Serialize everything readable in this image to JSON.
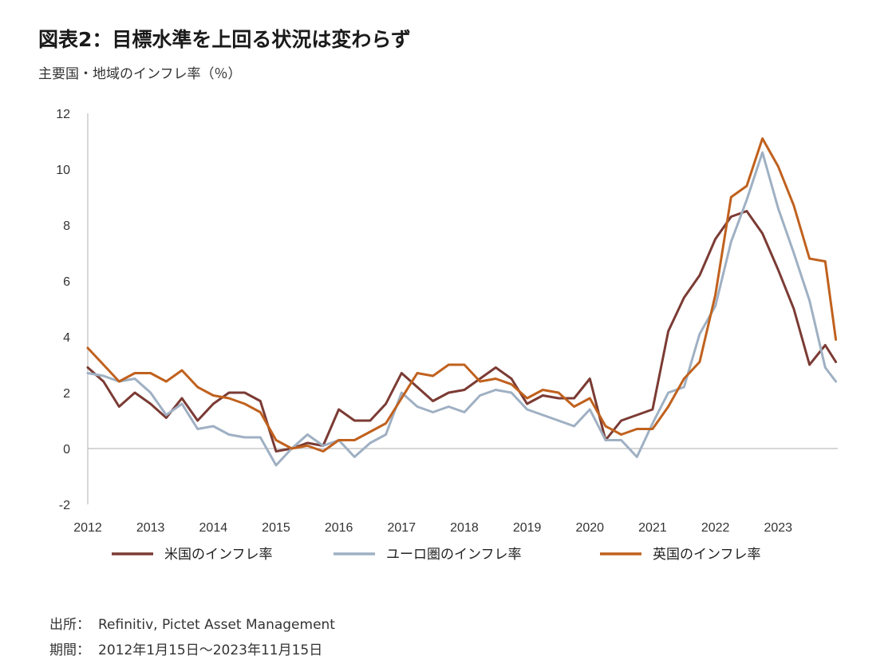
{
  "header": {
    "title": "図表2：目標水準を上回る状況は変わらず",
    "subtitle": "主要国・地域のインフレ率（％）"
  },
  "footer": {
    "source_key": "出所：",
    "source_value": "Refinitiv, Pictet Asset Management",
    "period_key": "期間：",
    "period_value": "2012年1月15日～2023年11月15日"
  },
  "chart_data": {
    "type": "line",
    "xlabel": "",
    "ylabel": "",
    "xlim": [
      2012.0,
      2023.95
    ],
    "ylim": [
      -2,
      12
    ],
    "yticks": [
      12,
      10,
      8,
      6,
      4,
      2,
      0,
      -2
    ],
    "xticks": [
      2012,
      2013,
      2014,
      2015,
      2016,
      2017,
      2018,
      2019,
      2020,
      2021,
      2022,
      2023
    ],
    "grid": false,
    "legend": "bottom",
    "series": [
      {
        "name": "米国のインフレ率",
        "color": "#7b3b34",
        "points": [
          [
            2012.0,
            2.9
          ],
          [
            2012.25,
            2.4
          ],
          [
            2012.5,
            1.5
          ],
          [
            2012.75,
            2.0
          ],
          [
            2013.0,
            1.6
          ],
          [
            2013.25,
            1.1
          ],
          [
            2013.5,
            1.8
          ],
          [
            2013.75,
            1.0
          ],
          [
            2014.0,
            1.6
          ],
          [
            2014.25,
            2.0
          ],
          [
            2014.5,
            2.0
          ],
          [
            2014.75,
            1.7
          ],
          [
            2015.0,
            -0.1
          ],
          [
            2015.25,
            0.0
          ],
          [
            2015.5,
            0.2
          ],
          [
            2015.75,
            0.1
          ],
          [
            2016.0,
            1.4
          ],
          [
            2016.25,
            1.0
          ],
          [
            2016.5,
            1.0
          ],
          [
            2016.75,
            1.6
          ],
          [
            2017.0,
            2.7
          ],
          [
            2017.25,
            2.2
          ],
          [
            2017.5,
            1.7
          ],
          [
            2017.75,
            2.0
          ],
          [
            2018.0,
            2.1
          ],
          [
            2018.25,
            2.5
          ],
          [
            2018.5,
            2.9
          ],
          [
            2018.75,
            2.5
          ],
          [
            2019.0,
            1.6
          ],
          [
            2019.25,
            1.9
          ],
          [
            2019.5,
            1.8
          ],
          [
            2019.75,
            1.8
          ],
          [
            2020.0,
            2.5
          ],
          [
            2020.25,
            0.3
          ],
          [
            2020.5,
            1.0
          ],
          [
            2020.75,
            1.2
          ],
          [
            2021.0,
            1.4
          ],
          [
            2021.25,
            4.2
          ],
          [
            2021.5,
            5.4
          ],
          [
            2021.75,
            6.2
          ],
          [
            2022.0,
            7.5
          ],
          [
            2022.25,
            8.3
          ],
          [
            2022.5,
            8.5
          ],
          [
            2022.75,
            7.7
          ],
          [
            2023.0,
            6.4
          ],
          [
            2023.25,
            5.0
          ],
          [
            2023.5,
            3.0
          ],
          [
            2023.75,
            3.7
          ],
          [
            2023.92,
            3.1
          ]
        ]
      },
      {
        "name": "ユーロ圏のインフレ率",
        "color": "#9fb0c3",
        "points": [
          [
            2012.0,
            2.7
          ],
          [
            2012.25,
            2.6
          ],
          [
            2012.5,
            2.4
          ],
          [
            2012.75,
            2.5
          ],
          [
            2013.0,
            2.0
          ],
          [
            2013.25,
            1.2
          ],
          [
            2013.5,
            1.6
          ],
          [
            2013.75,
            0.7
          ],
          [
            2014.0,
            0.8
          ],
          [
            2014.25,
            0.5
          ],
          [
            2014.5,
            0.4
          ],
          [
            2014.75,
            0.4
          ],
          [
            2015.0,
            -0.6
          ],
          [
            2015.25,
            0.0
          ],
          [
            2015.5,
            0.5
          ],
          [
            2015.75,
            0.1
          ],
          [
            2016.0,
            0.3
          ],
          [
            2016.25,
            -0.3
          ],
          [
            2016.5,
            0.2
          ],
          [
            2016.75,
            0.5
          ],
          [
            2017.0,
            2.0
          ],
          [
            2017.25,
            1.5
          ],
          [
            2017.5,
            1.3
          ],
          [
            2017.75,
            1.5
          ],
          [
            2018.0,
            1.3
          ],
          [
            2018.25,
            1.9
          ],
          [
            2018.5,
            2.1
          ],
          [
            2018.75,
            2.0
          ],
          [
            2019.0,
            1.4
          ],
          [
            2019.25,
            1.2
          ],
          [
            2019.5,
            1.0
          ],
          [
            2019.75,
            0.8
          ],
          [
            2020.0,
            1.4
          ],
          [
            2020.25,
            0.3
          ],
          [
            2020.5,
            0.3
          ],
          [
            2020.75,
            -0.3
          ],
          [
            2021.0,
            0.9
          ],
          [
            2021.25,
            2.0
          ],
          [
            2021.5,
            2.2
          ],
          [
            2021.75,
            4.1
          ],
          [
            2022.0,
            5.1
          ],
          [
            2022.25,
            7.4
          ],
          [
            2022.5,
            8.9
          ],
          [
            2022.75,
            10.6
          ],
          [
            2023.0,
            8.6
          ],
          [
            2023.25,
            7.0
          ],
          [
            2023.5,
            5.3
          ],
          [
            2023.75,
            2.9
          ],
          [
            2023.92,
            2.4
          ]
        ]
      },
      {
        "name": "英国のインフレ率",
        "color": "#c0611e",
        "points": [
          [
            2012.0,
            3.6
          ],
          [
            2012.25,
            3.0
          ],
          [
            2012.5,
            2.4
          ],
          [
            2012.75,
            2.7
          ],
          [
            2013.0,
            2.7
          ],
          [
            2013.25,
            2.4
          ],
          [
            2013.5,
            2.8
          ],
          [
            2013.75,
            2.2
          ],
          [
            2014.0,
            1.9
          ],
          [
            2014.25,
            1.8
          ],
          [
            2014.5,
            1.6
          ],
          [
            2014.75,
            1.3
          ],
          [
            2015.0,
            0.3
          ],
          [
            2015.25,
            0.0
          ],
          [
            2015.5,
            0.1
          ],
          [
            2015.75,
            -0.1
          ],
          [
            2016.0,
            0.3
          ],
          [
            2016.25,
            0.3
          ],
          [
            2016.5,
            0.6
          ],
          [
            2016.75,
            0.9
          ],
          [
            2017.0,
            1.8
          ],
          [
            2017.25,
            2.7
          ],
          [
            2017.5,
            2.6
          ],
          [
            2017.75,
            3.0
          ],
          [
            2018.0,
            3.0
          ],
          [
            2018.25,
            2.4
          ],
          [
            2018.5,
            2.5
          ],
          [
            2018.75,
            2.3
          ],
          [
            2019.0,
            1.8
          ],
          [
            2019.25,
            2.1
          ],
          [
            2019.5,
            2.0
          ],
          [
            2019.75,
            1.5
          ],
          [
            2020.0,
            1.8
          ],
          [
            2020.25,
            0.8
          ],
          [
            2020.5,
            0.5
          ],
          [
            2020.75,
            0.7
          ],
          [
            2021.0,
            0.7
          ],
          [
            2021.25,
            1.5
          ],
          [
            2021.5,
            2.5
          ],
          [
            2021.75,
            3.1
          ],
          [
            2022.0,
            5.5
          ],
          [
            2022.25,
            9.0
          ],
          [
            2022.5,
            9.4
          ],
          [
            2022.75,
            11.1
          ],
          [
            2023.0,
            10.1
          ],
          [
            2023.25,
            8.7
          ],
          [
            2023.5,
            6.8
          ],
          [
            2023.75,
            6.7
          ],
          [
            2023.92,
            3.9
          ]
        ]
      }
    ]
  }
}
